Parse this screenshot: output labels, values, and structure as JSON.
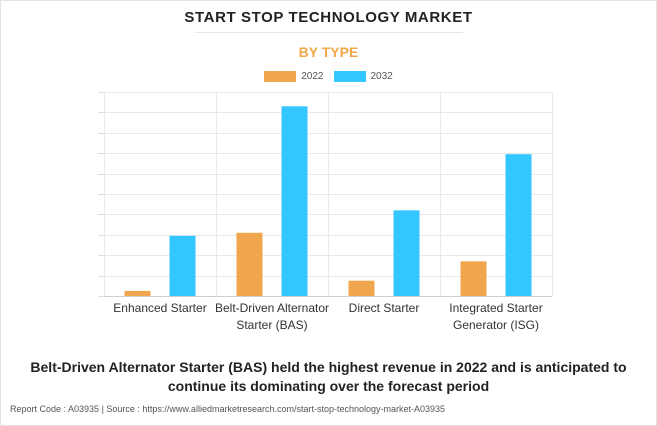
{
  "title": "START STOP TECHNOLOGY MARKET",
  "subtitle": "BY TYPE",
  "headline": "Belt-Driven Alternator Starter (BAS) held the highest revenue in 2022 and is anticipated to continue its dominating over the forecast period",
  "footer": "Report Code : A03935  |  Source : https://www.alliedmarketresearch.com/start-stop-technology-market-A03935",
  "colors": {
    "accent": "#f0a848",
    "series_2022": "#f0a64c",
    "series_2032": "#33c6ff"
  },
  "chart_data": {
    "type": "bar",
    "title": "START STOP TECHNOLOGY MARKET",
    "subtitle": "BY TYPE",
    "xlabel": "",
    "ylabel": "",
    "y_tick_labels_shown": false,
    "grid": true,
    "legend_position": "top",
    "ylim": [
      0,
      10
    ],
    "categories": [
      "Enhanced Starter",
      "Belt-Driven Alternator Starter (BAS)",
      "Direct Starter",
      "Integrated Starter Generator (ISG)"
    ],
    "category_display_lines": [
      [
        "Enhanced Starter"
      ],
      [
        "Belt-Driven Alternator",
        "Starter (BAS)"
      ],
      [
        "Direct Starter"
      ],
      [
        "Integrated Starter",
        "Generator (ISG)"
      ]
    ],
    "series": [
      {
        "name": "2022",
        "color": "#f0a64c",
        "values": [
          0.25,
          3.1,
          0.75,
          1.7
        ]
      },
      {
        "name": "2032",
        "color": "#33c6ff",
        "values": [
          2.95,
          9.3,
          4.2,
          6.95
        ]
      }
    ]
  }
}
